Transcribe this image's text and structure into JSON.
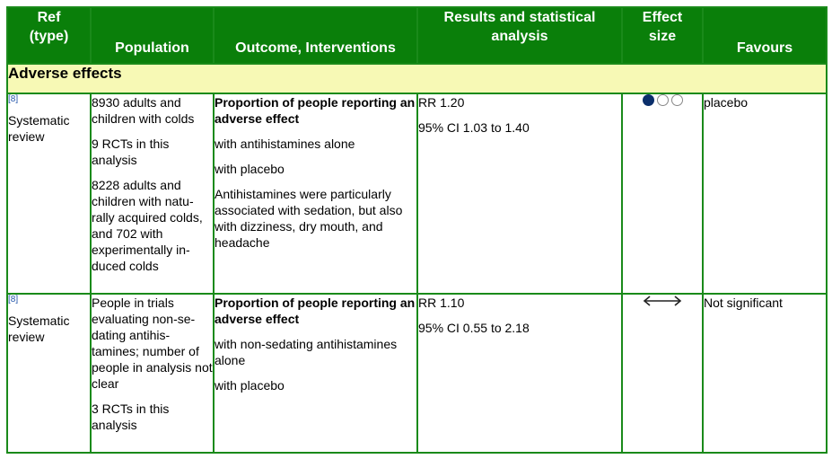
{
  "header": {
    "ref": [
      "Ref",
      "(type)"
    ],
    "population": "Population",
    "outcome": "Outcome, Interventions",
    "results": [
      "Results and statistical",
      "analysis"
    ],
    "effect": [
      "Effect",
      "size"
    ],
    "favours": "Favours"
  },
  "section_title": "Adverse effects",
  "rows": [
    {
      "ref_num": "[8]",
      "type": [
        "Systematic",
        "review"
      ],
      "population": [
        "8930 adults and children with colds",
        "9 RCTs in this analysis",
        "8228 adults and children with natu-rally acquired colds, and 702 with experimentally in-duced colds"
      ],
      "outcome_title": "Proportion of people reporting an adverse effect",
      "outcome": [
        "with antihistamines alone",
        "with placebo",
        "Antihistamines were particularly associated with sedation, but also with dizziness, dry mouth, and headache"
      ],
      "results": [
        "RR 1.20",
        "95% CI 1.03 to 1.40"
      ],
      "effect_size": {
        "type": "circles",
        "filled": 1,
        "total": 3,
        "filled_color": "#0b2f6b"
      },
      "favours": "placebo"
    },
    {
      "ref_num": "[8]",
      "type": [
        "Systematic",
        "review"
      ],
      "population": [
        "People in trials evaluating non-se-dating antihis-tamines; number of people in analysis not clear",
        "3 RCTs in this analysis"
      ],
      "outcome_title": "Proportion of people reporting an adverse effect",
      "outcome": [
        "with non-sedating antihistamines alone",
        "with placebo"
      ],
      "results": [
        "RR 1.10",
        "95% CI 0.55 to 2.18"
      ],
      "effect_size": {
        "type": "double-arrow-icon"
      },
      "favours": "Not significant"
    }
  ]
}
